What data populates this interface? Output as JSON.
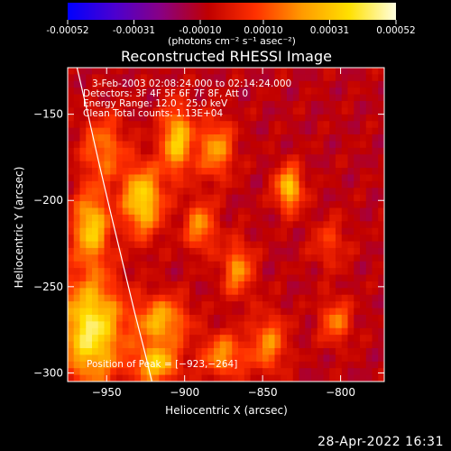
{
  "colorbar": {
    "tick_labels": [
      "-0.00052",
      "-0.00031",
      "-0.00010",
      "0.00010",
      "0.00031",
      "0.00052"
    ],
    "tick_values": [
      -0.00052,
      -0.00031,
      -0.0001,
      0.0001,
      0.00031,
      0.00052
    ],
    "range": [
      -0.00052,
      0.00052
    ],
    "unit_label": "(photons cm⁻² s⁻¹ asec⁻²)",
    "palette": [
      "#0000ff",
      "#4b00d0",
      "#8a0082",
      "#c00000",
      "#ff3000",
      "#ff9a00",
      "#ffe000",
      "#ffffe0"
    ]
  },
  "chart_data": {
    "type": "heatmap",
    "title": "Reconstructed RHESSI Image",
    "xlabel": "Heliocentric X (arcsec)",
    "ylabel": "Heliocentric Y (arcsec)",
    "xlim": [
      -975,
      -772
    ],
    "ylim": [
      -305,
      -123
    ],
    "x_ticks": [
      -950,
      -900,
      -850,
      -800
    ],
    "y_ticks": [
      -150,
      -200,
      -250,
      -300
    ],
    "x_tick_labels": [
      "−950",
      "−900",
      "−850",
      "−800"
    ],
    "y_tick_labels": [
      "−150",
      "−200",
      "−250",
      "−300"
    ],
    "annotations": [
      "3-Feb-2003 02:08:24.000 to 02:14:24.000",
      "Detectors: 3F 4F 5F 6F 7F 8F, Att 0",
      "Energy Range: 12.0 - 25.0 keV",
      "Clean     Total counts: 1.13E+04"
    ],
    "peak_label": "Position of Peak = [−923,−264]",
    "peak_position": [
      -923,
      -264
    ],
    "limb_curve": {
      "x": [
        -969,
        -962,
        -955,
        -948,
        -940,
        -932,
        -925,
        -921
      ],
      "y": [
        -123,
        -150,
        -178,
        -205,
        -235,
        -265,
        -290,
        -305
      ]
    },
    "grid_size": [
      52,
      47
    ],
    "bright_sources": [
      {
        "x": -960,
        "y": -275,
        "v": 0.00052,
        "sx": 14,
        "sy": 22
      },
      {
        "x": -960,
        "y": -215,
        "v": 0.00042,
        "sx": 8,
        "sy": 14
      },
      {
        "x": -952,
        "y": -170,
        "v": 0.00026,
        "sx": 10,
        "sy": 14
      },
      {
        "x": -927,
        "y": -200,
        "v": 0.00046,
        "sx": 9,
        "sy": 14
      },
      {
        "x": -905,
        "y": -165,
        "v": 0.00042,
        "sx": 7,
        "sy": 14
      },
      {
        "x": -880,
        "y": -170,
        "v": 0.00032,
        "sx": 8,
        "sy": 12
      },
      {
        "x": -890,
        "y": -215,
        "v": 0.0003,
        "sx": 7,
        "sy": 10
      },
      {
        "x": -866,
        "y": -240,
        "v": 0.0003,
        "sx": 7,
        "sy": 11
      },
      {
        "x": -833,
        "y": -193,
        "v": 0.00042,
        "sx": 6,
        "sy": 9
      },
      {
        "x": -915,
        "y": -270,
        "v": 0.00036,
        "sx": 12,
        "sy": 10
      },
      {
        "x": -918,
        "y": -295,
        "v": 0.0004,
        "sx": 10,
        "sy": 8
      },
      {
        "x": -875,
        "y": -290,
        "v": 0.0003,
        "sx": 10,
        "sy": 9
      },
      {
        "x": -846,
        "y": -283,
        "v": 0.00028,
        "sx": 8,
        "sy": 12
      },
      {
        "x": -803,
        "y": -270,
        "v": 0.00026,
        "sx": 7,
        "sy": 9
      },
      {
        "x": -807,
        "y": -225,
        "v": 0.00016,
        "sx": 8,
        "sy": 10
      }
    ]
  },
  "timestamp": "28-Apr-2022 16:31"
}
